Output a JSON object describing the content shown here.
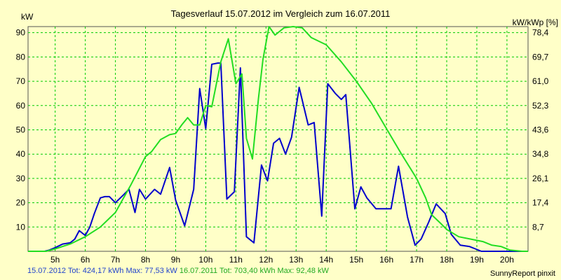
{
  "chart_data": {
    "type": "line",
    "title": "Tagesverlauf 15.07.2012 im Vergleich zum 16.07.2011",
    "ylabel_left": "kW",
    "ylabel_right": "kW/kWp [%]",
    "ylim": [
      0,
      92.5
    ],
    "yticks_left": [
      10,
      20,
      30,
      40,
      50,
      60,
      70,
      80,
      90
    ],
    "yticks_right": [
      "8,7",
      "17,4",
      "26,1",
      "34,8",
      "43,6",
      "52,3",
      "61,0",
      "69,7",
      "78,4"
    ],
    "xlim": [
      4.1,
      20.7
    ],
    "xticks": [
      {
        "x": 5,
        "label": "5h"
      },
      {
        "x": 6,
        "label": "6h"
      },
      {
        "x": 7,
        "label": "7h"
      },
      {
        "x": 8,
        "label": "8h"
      },
      {
        "x": 9,
        "label": "9h"
      },
      {
        "x": 10,
        "label": "10h"
      },
      {
        "x": 11,
        "label": "11h"
      },
      {
        "x": 12,
        "label": "12h"
      },
      {
        "x": 13,
        "label": "13h"
      },
      {
        "x": 14,
        "label": "14h"
      },
      {
        "x": 15,
        "label": "15h"
      },
      {
        "x": 16,
        "label": "16h"
      },
      {
        "x": 17,
        "label": "17h"
      },
      {
        "x": 18,
        "label": "18h"
      },
      {
        "x": 19,
        "label": "19h"
      },
      {
        "x": 20,
        "label": "20h"
      }
    ],
    "grid": true,
    "series": [
      {
        "name": "15.07.2012",
        "color": "#0000cc",
        "x": [
          4.1,
          4.5,
          4.65,
          4.8,
          5.0,
          5.25,
          5.5,
          5.65,
          5.8,
          6.0,
          6.15,
          6.3,
          6.5,
          6.65,
          6.8,
          7.0,
          7.25,
          7.45,
          7.65,
          7.8,
          8.0,
          8.3,
          8.5,
          8.8,
          9.0,
          9.3,
          9.6,
          9.8,
          10.0,
          10.2,
          10.4,
          10.5,
          10.7,
          10.95,
          11.15,
          11.35,
          11.6,
          11.85,
          12.05,
          12.25,
          12.45,
          12.65,
          12.85,
          13.1,
          13.4,
          13.6,
          13.85,
          14.05,
          14.3,
          14.5,
          14.65,
          14.95,
          15.15,
          15.35,
          15.65,
          15.9,
          16.15,
          16.4,
          16.7,
          16.95,
          17.15,
          17.4,
          17.65,
          17.95,
          18.15,
          18.45,
          18.75,
          18.95,
          19.15,
          19.35,
          19.65,
          19.9,
          20.1,
          20.3,
          20.7
        ],
        "values": [
          0,
          0,
          0,
          0.5,
          1.5,
          3,
          3.5,
          5,
          8.5,
          6.5,
          10,
          15.5,
          22,
          22.5,
          22.5,
          20,
          23,
          25.5,
          16,
          25.5,
          21.5,
          25.5,
          23.5,
          34.5,
          21,
          10.5,
          25.5,
          67,
          50.5,
          77,
          77.5,
          77.5,
          21.5,
          24.5,
          75.5,
          6,
          3.5,
          35.5,
          29,
          44.5,
          46.5,
          40,
          47,
          67.5,
          52,
          53,
          14.5,
          69,
          65,
          62.5,
          64.5,
          17.5,
          26.5,
          22,
          17.5,
          17.5,
          17.5,
          35,
          14,
          2.5,
          5,
          12,
          19.5,
          15.5,
          7,
          2.5,
          2,
          1,
          0,
          0,
          0,
          0,
          0,
          0,
          0
        ]
      },
      {
        "name": "16.07.2011",
        "color": "#22dd22",
        "x": [
          4.1,
          4.7,
          5.0,
          5.5,
          6.0,
          6.5,
          7.0,
          7.5,
          8.0,
          8.2,
          8.5,
          8.8,
          9.0,
          9.2,
          9.4,
          9.6,
          9.8,
          10.0,
          10.2,
          10.5,
          10.75,
          11.0,
          11.2,
          11.35,
          11.55,
          11.75,
          11.9,
          12.1,
          12.3,
          12.6,
          12.9,
          13.2,
          13.5,
          14.0,
          14.5,
          15.0,
          15.5,
          16.0,
          16.5,
          17.0,
          17.3,
          17.5,
          17.8,
          18.0,
          18.4,
          18.8,
          19.2,
          19.5,
          19.8,
          20.1,
          20.5,
          20.7
        ],
        "values": [
          0,
          0,
          1,
          3,
          6,
          10,
          16,
          27,
          39,
          41,
          46,
          48,
          48.5,
          52,
          55,
          52,
          52,
          60,
          59.5,
          78,
          87.5,
          69,
          73,
          46.5,
          38,
          63,
          79,
          92.5,
          89,
          92,
          92.5,
          92,
          88,
          85,
          78,
          70,
          61,
          50.5,
          40,
          30,
          22,
          15,
          11.5,
          9,
          6,
          5,
          4,
          2.5,
          2,
          0.5,
          0,
          0
        ]
      }
    ]
  },
  "footer": {
    "series1_label": "15.07.2012 Tot: 424,17 kWh Max: 77,53 kW",
    "series2_label": "16.07.2011 Tot: 703,40 kWh Max: 92,48 kW",
    "credit": "SunnyReport pinxit"
  }
}
